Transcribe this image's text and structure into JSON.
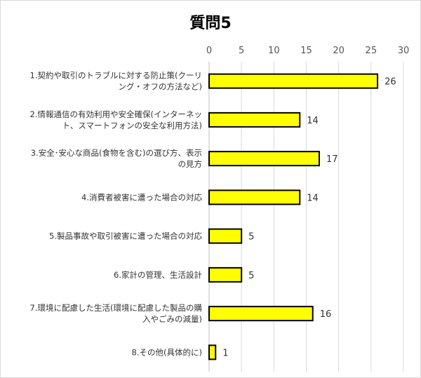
{
  "chart_data": {
    "type": "bar",
    "orientation": "horizontal",
    "title": "質問5",
    "xlim": [
      0,
      30
    ],
    "x_ticks": [
      0,
      5,
      10,
      15,
      20,
      25,
      30
    ],
    "x_axis_position": "top",
    "grid": true,
    "legend": "none",
    "bar_color": "#ffff00",
    "bar_edge_color": "#000000",
    "categories": [
      [
        "1.契約や取引のトラブルに対する防止策(クーリ",
        "ング・オフの方法など)"
      ],
      [
        "2.情報通信の有効利用や安全確保(インターネッ",
        "ト、スマートフォンの安全な利用方法)"
      ],
      [
        "3.安全･安心な商品(食物を含む)の選び方、表示",
        "の見方"
      ],
      [
        "4.消費者被害に遭った場合の対応"
      ],
      [
        "5.製品事故や取引被害に遭った場合の対応"
      ],
      [
        "6.家計の管理、生活設計"
      ],
      [
        "7.環境に配慮した生活(環境に配慮した製品の購",
        "入やごみの減量)"
      ],
      [
        "8.その他(具体的に)"
      ]
    ],
    "values": [
      26,
      14,
      17,
      14,
      5,
      5,
      16,
      1
    ]
  }
}
